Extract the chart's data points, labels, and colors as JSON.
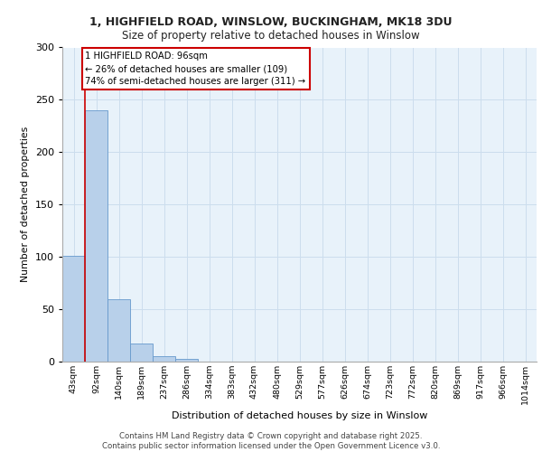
{
  "title_line1": "1, HIGHFIELD ROAD, WINSLOW, BUCKINGHAM, MK18 3DU",
  "title_line2": "Size of property relative to detached houses in Winslow",
  "xlabel": "Distribution of detached houses by size in Winslow",
  "ylabel": "Number of detached properties",
  "bin_labels": [
    "43sqm",
    "92sqm",
    "140sqm",
    "189sqm",
    "237sqm",
    "286sqm",
    "334sqm",
    "383sqm",
    "432sqm",
    "480sqm",
    "529sqm",
    "577sqm",
    "626sqm",
    "674sqm",
    "723sqm",
    "772sqm",
    "820sqm",
    "869sqm",
    "917sqm",
    "966sqm",
    "1014sqm"
  ],
  "bar_heights": [
    101,
    240,
    60,
    17,
    5,
    3,
    0,
    0,
    0,
    0,
    0,
    0,
    0,
    0,
    0,
    0,
    0,
    0,
    0,
    0,
    0
  ],
  "bar_color": "#b8d0ea",
  "bar_edge_color": "#6699cc",
  "grid_color": "#ccdded",
  "bg_color": "#e8f2fa",
  "annotation_text": "1 HIGHFIELD ROAD: 96sqm\n← 26% of detached houses are smaller (109)\n74% of semi-detached houses are larger (311) →",
  "annotation_box_facecolor": "#ffffff",
  "annotation_border_color": "#cc0000",
  "footer_text": "Contains HM Land Registry data © Crown copyright and database right 2025.\nContains public sector information licensed under the Open Government Licence v3.0.",
  "ylim": [
    0,
    300
  ],
  "yticks": [
    0,
    50,
    100,
    150,
    200,
    250,
    300
  ]
}
